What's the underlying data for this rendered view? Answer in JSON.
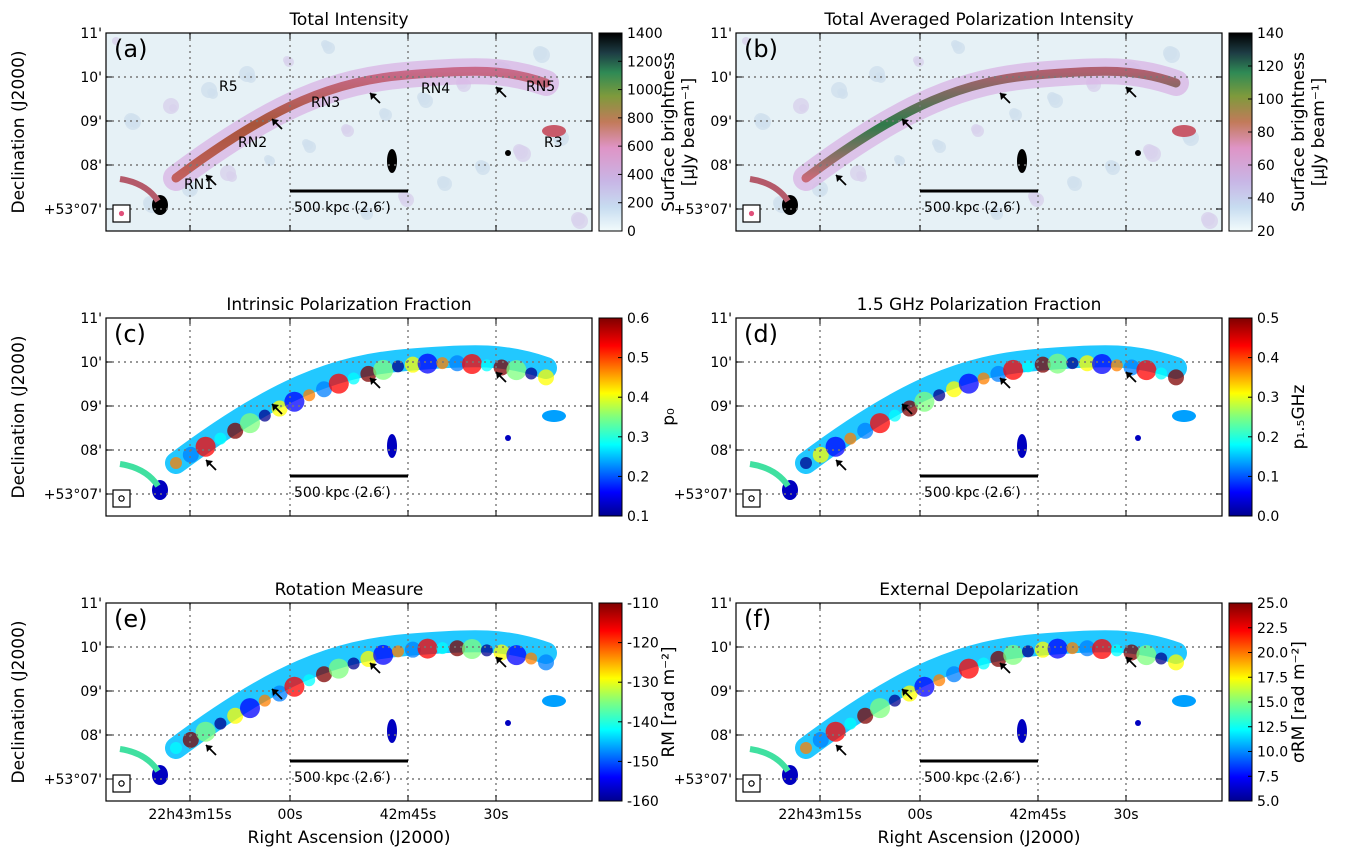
{
  "figure": {
    "y_axis_label": "Declination (J2000)",
    "x_axis_label": "Right Ascension (J2000)",
    "dec_ticks": [
      "11'",
      "10'",
      "09'",
      "08'",
      "+53°07'"
    ],
    "ra_ticks": [
      "22h43m15s",
      "00s",
      "42m45s",
      "30s"
    ],
    "scale_bar_label": "500 kpc (2.6′)"
  },
  "panels": [
    {
      "id": "a",
      "letter": "(a)",
      "title": "Total Intensity",
      "colorbar": {
        "cmap": "cubehelix-like",
        "ticks": [
          "0",
          "200",
          "400",
          "600",
          "800",
          "1000",
          "1200",
          "1400"
        ],
        "label": "Surface brightness",
        "label2": "[μJy beam⁻¹]"
      },
      "region_labels": [
        "R5",
        "RN3",
        "RN4",
        "RN5",
        "RN2",
        "RN1",
        "R3"
      ]
    },
    {
      "id": "b",
      "letter": "(b)",
      "title": "Total Averaged Polarization Intensity",
      "colorbar": {
        "cmap": "cubehelix-like",
        "ticks": [
          "20",
          "40",
          "60",
          "80",
          "100",
          "120",
          "140"
        ],
        "label": "Surface brightness",
        "label2": "[μJy beam⁻¹]"
      }
    },
    {
      "id": "c",
      "letter": "(c)",
      "title": "Intrinsic Polarization Fraction",
      "colorbar": {
        "cmap": "jet",
        "ticks": [
          "0.1",
          "0.2",
          "0.3",
          "0.4",
          "0.5",
          "0.6"
        ],
        "label": "p₀"
      }
    },
    {
      "id": "d",
      "letter": "(d)",
      "title": "1.5 GHz Polarization Fraction",
      "colorbar": {
        "cmap": "jet",
        "ticks": [
          "0.0",
          "0.1",
          "0.2",
          "0.3",
          "0.4",
          "0.5"
        ],
        "label": "p₁.₅GHz"
      }
    },
    {
      "id": "e",
      "letter": "(e)",
      "title": "Rotation Measure",
      "colorbar": {
        "cmap": "jet",
        "ticks": [
          "-160",
          "-150",
          "-140",
          "-130",
          "-120",
          "-110"
        ],
        "label": "RM [rad m⁻²]"
      }
    },
    {
      "id": "f",
      "letter": "(f)",
      "title": "External Depolarization",
      "colorbar": {
        "cmap": "jet",
        "ticks": [
          "5.0",
          "7.5",
          "10.0",
          "12.5",
          "15.0",
          "17.5",
          "20.0",
          "22.5",
          "25.0"
        ],
        "label": "σRM [rad m⁻²]"
      }
    }
  ]
}
